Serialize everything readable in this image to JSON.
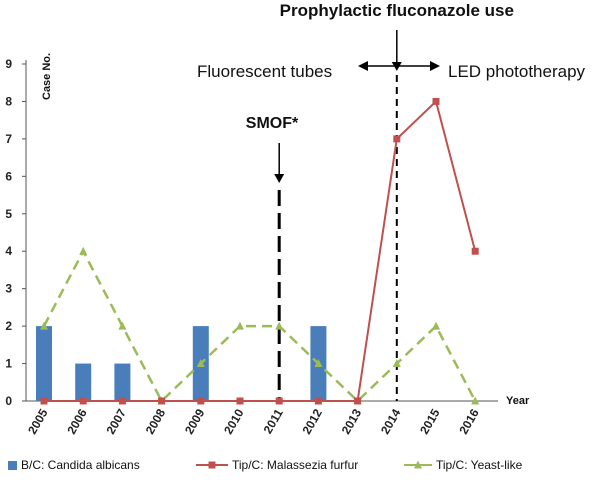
{
  "chart_data": {
    "type": "bar+line",
    "categories": [
      "2005",
      "2006",
      "2007",
      "2008",
      "2009",
      "2010",
      "2011",
      "2012",
      "2013",
      "2014",
      "2015",
      "2016"
    ],
    "ylim": [
      0,
      9
    ],
    "yticks": [
      "0",
      "1",
      "2",
      "3",
      "4",
      "5",
      "6",
      "7",
      "8",
      "9"
    ],
    "ylabel": "Case No.",
    "xlabel": "Year",
    "series": [
      {
        "name": "B/C: Candida albicans",
        "type": "bar",
        "color": "#4a7ebb",
        "values": [
          2,
          1,
          1,
          0,
          2,
          0,
          0,
          2,
          0,
          null,
          null,
          null
        ]
      },
      {
        "name": "Tip/C: Malassezia furfur",
        "type": "line",
        "color": "#c0504d",
        "marker": "square",
        "values": [
          0,
          0,
          0,
          0,
          0,
          0,
          0,
          0,
          0,
          7,
          8,
          4
        ]
      },
      {
        "name": "Tip/C: Yeast-like",
        "type": "line",
        "color": "#9bbb59",
        "marker": "triangle",
        "dashed": true,
        "values": [
          2,
          4,
          2,
          0,
          1,
          2,
          2,
          1,
          0,
          1,
          2,
          0
        ]
      }
    ],
    "annotations": {
      "smof": {
        "text": "SMOF*",
        "year": "2011"
      },
      "fluconazole": {
        "text": "Prophylactic fluconazole use",
        "year": "2014"
      },
      "left_period": "Fluorescent tubes",
      "right_period": "LED phototherapy"
    },
    "grid": false,
    "legend": "bottom"
  }
}
